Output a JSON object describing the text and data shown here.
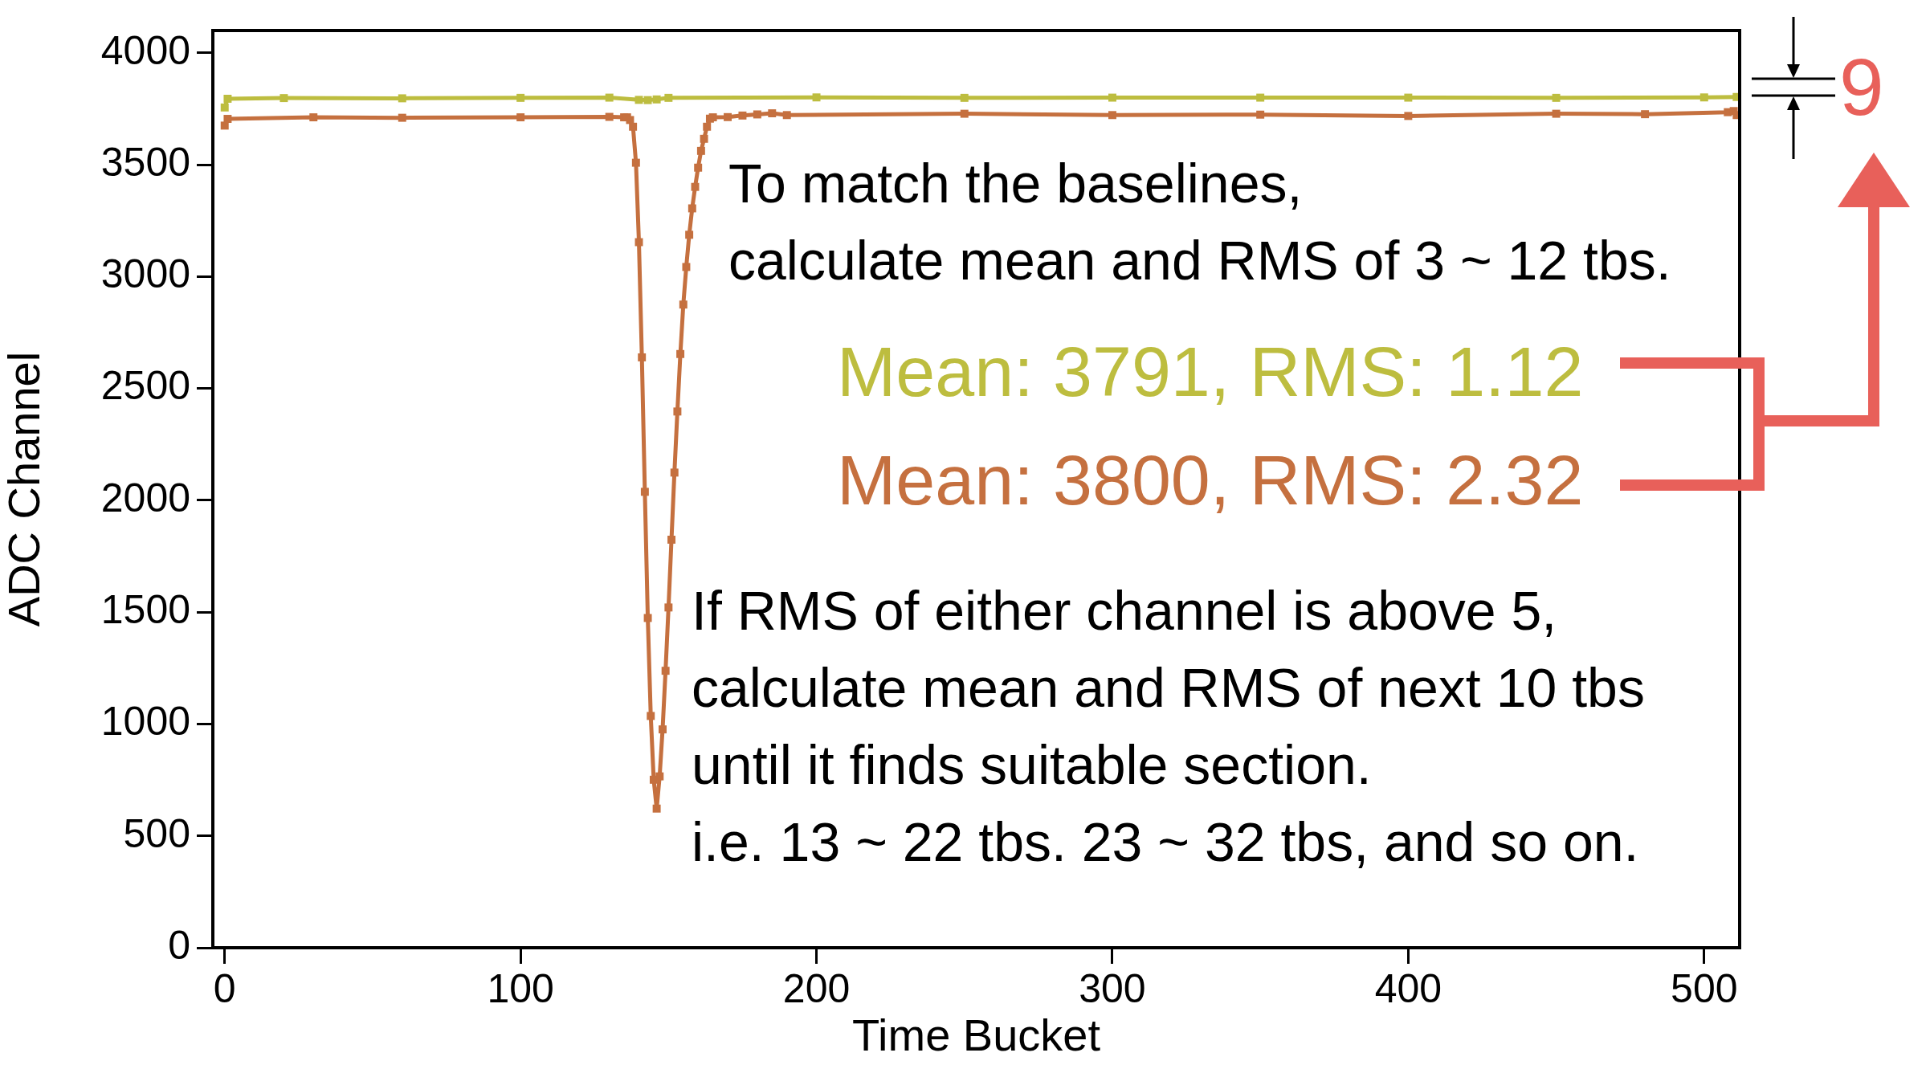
{
  "chart_data": {
    "type": "line",
    "xlabel": "Time Bucket",
    "ylabel": "ADC Channel",
    "xlim": [
      -4,
      512
    ],
    "ylim": [
      0,
      4100
    ],
    "xticks": [
      0,
      100,
      200,
      300,
      400,
      500
    ],
    "yticks": [
      0,
      500,
      1000,
      1500,
      2000,
      2500,
      3000,
      3500,
      4000
    ],
    "grid": false,
    "legend": false,
    "marker": "square",
    "line_style": "solid",
    "series": [
      {
        "color": "#bdbd3f",
        "x": [
          0,
          1,
          20,
          60,
          100,
          130,
          140,
          143,
          146,
          150,
          200,
          250,
          300,
          350,
          400,
          450,
          500,
          511
        ],
        "values": [
          3756,
          3795,
          3798,
          3797,
          3799,
          3800,
          3790,
          3789,
          3792,
          3799,
          3801,
          3799,
          3800,
          3800,
          3800,
          3799,
          3801,
          3803
        ]
      },
      {
        "color": "#c5703f",
        "x": [
          0,
          1,
          30,
          60,
          100,
          130,
          135,
          136,
          137,
          138,
          139,
          140,
          141,
          142,
          143,
          144,
          145,
          146,
          147,
          148,
          149,
          150,
          151,
          152,
          153,
          154,
          155,
          156,
          157,
          158,
          159,
          160,
          161,
          162,
          163,
          164,
          165,
          170,
          175,
          180,
          185,
          190,
          250,
          300,
          350,
          400,
          450,
          480,
          508,
          510,
          511
        ],
        "values": [
          3675,
          3705,
          3712,
          3710,
          3712,
          3714,
          3712,
          3712,
          3700,
          3670,
          3509,
          3154,
          2639,
          2038,
          1474,
          1036,
          751,
          622,
          766,
          976,
          1238,
          1521,
          1824,
          2124,
          2397,
          2654,
          2875,
          3043,
          3187,
          3305,
          3401,
          3487,
          3562,
          3616,
          3670,
          3706,
          3712,
          3713,
          3720,
          3725,
          3730,
          3722,
          3728,
          3722,
          3724,
          3718,
          3728,
          3726,
          3735,
          3740,
          3722
        ]
      }
    ],
    "annotations": [
      "To match the baselines,",
      "calculate mean and RMS of 3 ~ 12 tbs.",
      "Mean: 3791, RMS: 1.12",
      "Mean: 3800, RMS: 2.32",
      "If RMS of either channel is above 5,",
      "calculate mean and RMS of next 10 tbs",
      "until it finds suitable section.",
      "i.e. 13 ~ 22 tbs. 23 ~ 32 tbs, and so on.",
      "9"
    ]
  }
}
